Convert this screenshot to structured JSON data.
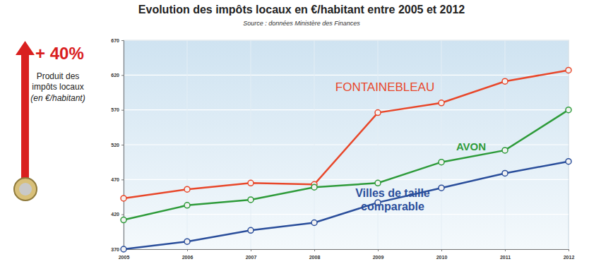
{
  "chart_data": {
    "type": "line",
    "title": "Evolution des impôts locaux en €/habitant entre 2005 et 2012",
    "subtitle": "Source : données Ministère des Finances",
    "annotations": [
      "+ 40%",
      "Produit des impôts locaux",
      "(en €/habitant)"
    ],
    "x": [
      2005,
      2006,
      2007,
      2008,
      2009,
      2010,
      2011,
      2012
    ],
    "xlim": [
      2005,
      2012
    ],
    "xticks": [
      2005,
      2006,
      2007,
      2008,
      2009,
      2010,
      2011,
      2012
    ],
    "ylim": [
      370,
      670
    ],
    "yticks": [
      370,
      420,
      470,
      520,
      570,
      620,
      670
    ],
    "grid": true,
    "marker": "circle",
    "series": [
      {
        "name": "FONTAINEBLEAU",
        "color": "#e8472a",
        "values": [
          443,
          456,
          465,
          463,
          566,
          580,
          611,
          627
        ]
      },
      {
        "name": "AVON",
        "color": "#2e9b3a",
        "values": [
          412,
          433,
          441,
          459,
          465,
          495,
          512,
          570
        ]
      },
      {
        "name": "Villes de taille comparable",
        "color": "#2a4e9b",
        "values": [
          370,
          381,
          397,
          408,
          437,
          458,
          479,
          496
        ]
      }
    ]
  }
}
